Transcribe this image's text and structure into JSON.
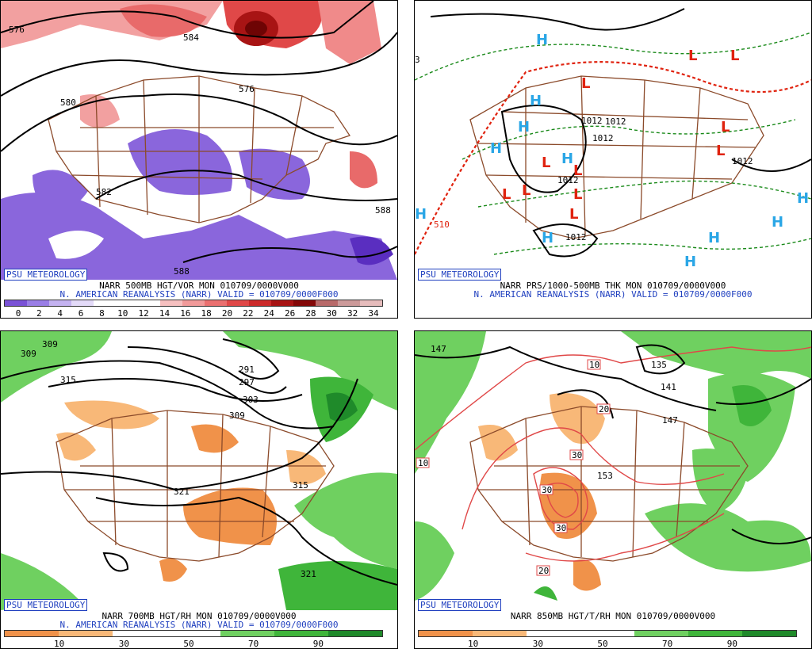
{
  "brand": "PSU METEOROLOGY",
  "reanalysis_line": "N. AMERICAN REANALYSIS (NARR) VALID = 010709/0000F000",
  "panels": {
    "p1": {
      "title": "NARR 500MB HGT/VOR MON 010709/0000V000",
      "colorbar_labels": [
        "0",
        "2",
        "4",
        "6",
        "8",
        "10",
        "12",
        "14",
        "16",
        "18",
        "20",
        "22",
        "24",
        "26",
        "28",
        "30",
        "32",
        "34"
      ],
      "colorbar_colors": [
        "#7a52d6",
        "#9a7ee6",
        "#c4b2f0",
        "#e3daf8",
        "#ffffff",
        "#ffffff",
        "#ffffff",
        "#f6c0c0",
        "#f19a9a",
        "#ea7070",
        "#e04848",
        "#cc2a2a",
        "#a81414",
        "#840808",
        "#b86a6a",
        "#cc9a9a",
        "#e6bcbc"
      ],
      "contour_labels": [
        "576",
        "584",
        "580",
        "576",
        "582",
        "588",
        "588"
      ]
    },
    "p2": {
      "title": "NARR PRS/1000-500MB THK MON 010709/0000V000",
      "pressure_labels": [
        "1012",
        "1012",
        "1012",
        "1012",
        "1012",
        "1012"
      ],
      "thickness_label": "510",
      "edge_label": "3"
    },
    "p3": {
      "title": "NARR 700MB HGT/RH MON 010709/0000V000",
      "colorbar_labels": [
        "10",
        "30",
        "50",
        "70",
        "90"
      ],
      "colorbar_colors": [
        "#f0924a",
        "#f8b878",
        "#ffffff",
        "#ffffff",
        "#6fd060",
        "#3fb53a",
        "#1f8a2a"
      ],
      "contour_labels": [
        "309",
        "309",
        "315",
        "291",
        "297",
        "303",
        "309",
        "315",
        "321",
        "321"
      ]
    },
    "p4": {
      "title": "NARR 850MB HGT/T/RH MON 010709/0000V000",
      "colorbar_labels": [
        "10",
        "30",
        "50",
        "70",
        "90"
      ],
      "colorbar_colors": [
        "#f0924a",
        "#f8b878",
        "#ffffff",
        "#ffffff",
        "#6fd060",
        "#3fb53a",
        "#1f8a2a"
      ],
      "contour_labels": [
        "147",
        "135",
        "141",
        "147",
        "153"
      ],
      "temp_labels": [
        "10",
        "20",
        "10",
        "30",
        "30",
        "30",
        "20"
      ]
    }
  },
  "colors": {
    "map_borders": "#8b4a2a",
    "height_contours": "#000000",
    "high_marker": "#2aa6e6",
    "low_marker": "#e0230f",
    "thickness_dashed": "#1a8a1a",
    "thickness_freezing": "#e0230f",
    "temperature_contours": "#e04848"
  },
  "icons": {
    "high": "H",
    "low": "L"
  }
}
